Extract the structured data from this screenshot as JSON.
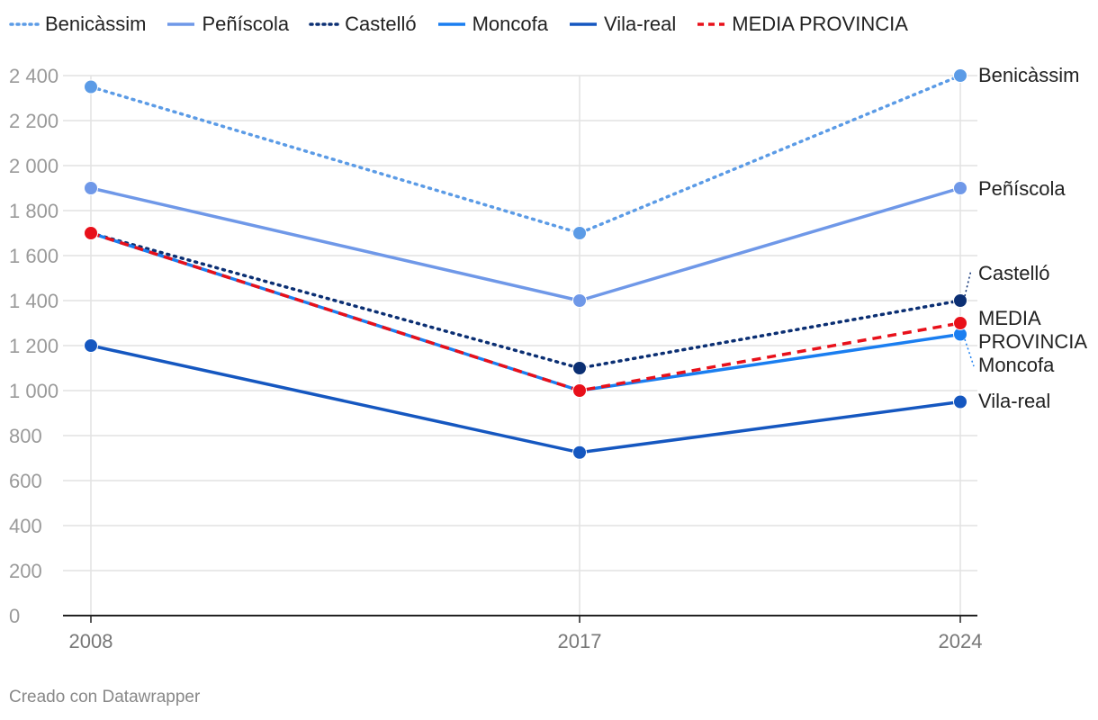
{
  "chart_data": {
    "type": "line",
    "x": [
      "2008",
      "2017",
      "2024"
    ],
    "ylim": [
      0,
      2400
    ],
    "yticks": [
      0,
      200,
      400,
      600,
      800,
      1000,
      1200,
      1400,
      1600,
      1800,
      2000,
      2200,
      2400
    ],
    "ytick_labels": [
      "0",
      "200",
      "400",
      "600",
      "800",
      "1 000",
      "1 200",
      "1 400",
      "1 600",
      "1 800",
      "2 000",
      "2 200",
      "2 400"
    ],
    "grid": true,
    "legend_position": "top",
    "series": [
      {
        "name": "Benicàssim",
        "values": [
          2350,
          1700,
          2400
        ],
        "color": "#5b9be6",
        "style": "dotted"
      },
      {
        "name": "Peñíscola",
        "values": [
          1900,
          1400,
          1900
        ],
        "color": "#6f98e8",
        "style": "solid"
      },
      {
        "name": "Castelló",
        "values": [
          1700,
          1100,
          1400
        ],
        "color": "#0b2f73",
        "style": "dotted"
      },
      {
        "name": "Moncofa",
        "values": [
          1700,
          1000,
          1250
        ],
        "color": "#1a7ef0",
        "style": "solid"
      },
      {
        "name": "Vila-real",
        "values": [
          1200,
          725,
          950
        ],
        "color": "#1557c0",
        "style": "solid"
      },
      {
        "name": "MEDIA PROVINCIA",
        "values": [
          1700,
          1000,
          1300
        ],
        "color": "#e8101a",
        "style": "dashed"
      }
    ],
    "end_labels": [
      {
        "series": "Benicàssim",
        "lines": [
          "Benicàssim"
        ]
      },
      {
        "series": "Peñíscola",
        "lines": [
          "Peñíscola"
        ]
      },
      {
        "series": "Castelló",
        "lines": [
          "Castelló"
        ]
      },
      {
        "series": "MEDIA PROVINCIA",
        "lines": [
          "MEDIA",
          "PROVINCIA"
        ]
      },
      {
        "series": "Moncofa",
        "lines": [
          "Moncofa"
        ]
      },
      {
        "series": "Vila-real",
        "lines": [
          "Vila-real"
        ]
      }
    ]
  },
  "footer": {
    "credit": "Creado con Datawrapper"
  }
}
